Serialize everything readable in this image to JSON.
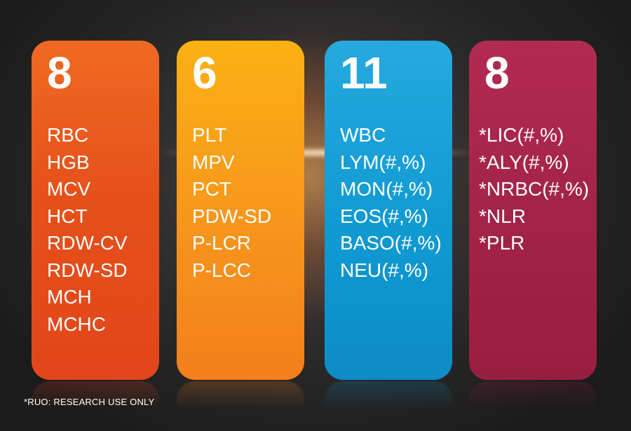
{
  "cards": [
    {
      "count": "8",
      "color": "#e5511a",
      "items": [
        "RBC",
        "HGB",
        "MCV",
        "HCT",
        "RDW-CV",
        "RDW-SD",
        "MCH",
        "MCHC"
      ]
    },
    {
      "count": "6",
      "color": "#f7951c",
      "items": [
        "PLT",
        "MPV",
        "PCT",
        "PDW-SD",
        "P-LCR",
        "P-LCC"
      ]
    },
    {
      "count": "11",
      "color": "#109ad2",
      "items": [
        "WBC",
        "LYM(#,%)",
        "MON(#,%)",
        "EOS(#,%)",
        "BASO(#,%)",
        "NEU(#,%)"
      ]
    },
    {
      "count": "8",
      "color": "#a22347",
      "items": [
        "*LIC(#,%)",
        "*ALY(#,%)",
        "*NRBC(#,%)",
        "*NLR",
        "*PLR"
      ]
    }
  ],
  "footnote": "*RUO: RESEARCH USE ONLY"
}
